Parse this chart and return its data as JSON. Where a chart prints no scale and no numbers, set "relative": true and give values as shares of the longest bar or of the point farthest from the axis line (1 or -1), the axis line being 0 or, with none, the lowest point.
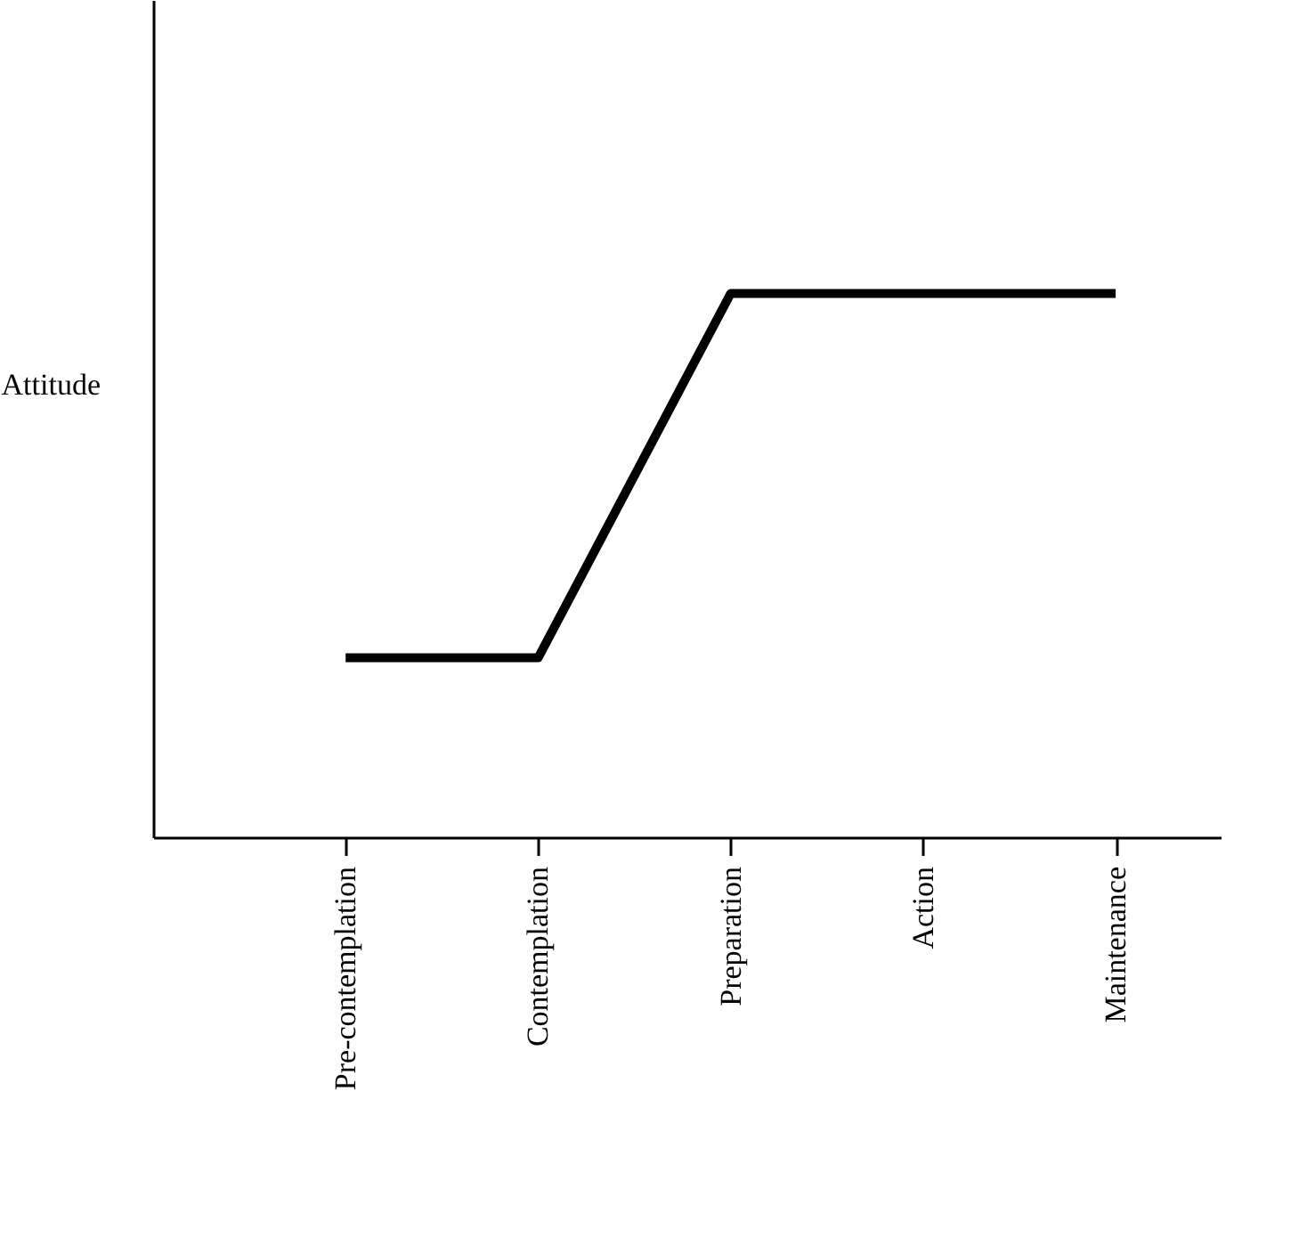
{
  "chart_data": {
    "type": "line",
    "relative": true,
    "ylabel": "Attitude",
    "categories": [
      "Pre-contemplation",
      "Contemplation",
      "Preparation",
      "Action",
      "Maintenance"
    ],
    "series": [
      {
        "color": "#000000",
        "values": [
          0.33,
          0.33,
          1,
          1,
          1
        ]
      }
    ],
    "grid": false,
    "legend": false,
    "marker": "none",
    "line_style": "solid",
    "tick_labels": "x"
  }
}
